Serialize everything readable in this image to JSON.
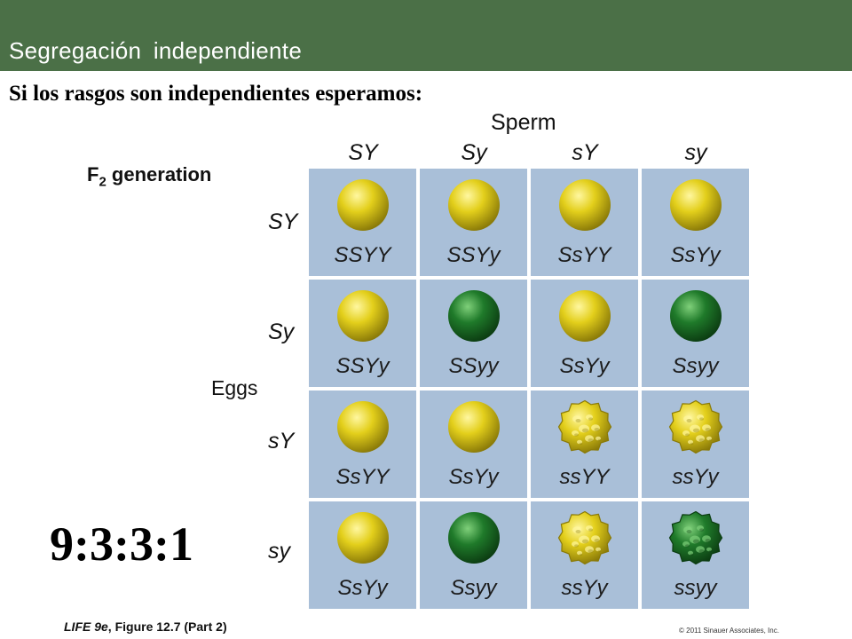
{
  "header": {
    "title": "Segregación independiente"
  },
  "subtitle": "Si los rasgos son independientes esperamos:",
  "figure": {
    "sperm_label": "Sperm",
    "generation_label_prefix": "F",
    "generation_label_sub": "2",
    "generation_label_suffix": " generation",
    "eggs_label": "Eggs",
    "sperm_gametes": [
      "SY",
      "Sy",
      "sY",
      "sy"
    ],
    "egg_gametes": [
      "SY",
      "Sy",
      "sY",
      "sy"
    ],
    "cells": [
      [
        {
          "genotype": "SSYY",
          "phenotype": "yellow-round"
        },
        {
          "genotype": "SSYy",
          "phenotype": "yellow-round"
        },
        {
          "genotype": "SsYY",
          "phenotype": "yellow-round"
        },
        {
          "genotype": "SsYy",
          "phenotype": "yellow-round"
        }
      ],
      [
        {
          "genotype": "SSYy",
          "phenotype": "yellow-round"
        },
        {
          "genotype": "SSyy",
          "phenotype": "green-round"
        },
        {
          "genotype": "SsYy",
          "phenotype": "yellow-round"
        },
        {
          "genotype": "Ssyy",
          "phenotype": "green-round"
        }
      ],
      [
        {
          "genotype": "SsYY",
          "phenotype": "yellow-round"
        },
        {
          "genotype": "SsYy",
          "phenotype": "yellow-round"
        },
        {
          "genotype": "ssYY",
          "phenotype": "yellow-wrinkled"
        },
        {
          "genotype": "ssYy",
          "phenotype": "yellow-wrinkled"
        }
      ],
      [
        {
          "genotype": "SsYy",
          "phenotype": "yellow-round"
        },
        {
          "genotype": "Ssyy",
          "phenotype": "green-round"
        },
        {
          "genotype": "ssYy",
          "phenotype": "yellow-wrinkled"
        },
        {
          "genotype": "ssyy",
          "phenotype": "green-wrinkled"
        }
      ]
    ],
    "ratio": "9:3:3:1"
  },
  "footer": {
    "caption_book": "LIFE 9e",
    "caption_rest": ", Figure 12.7 (Part 2)",
    "copyright": "© 2011 Sinauer Associates, Inc."
  },
  "colors": {
    "banner": "#4b7047",
    "cell_background": "#a9bfd8",
    "pea_yellow": "#e3cf1b",
    "pea_green": "#1f7a2a"
  }
}
